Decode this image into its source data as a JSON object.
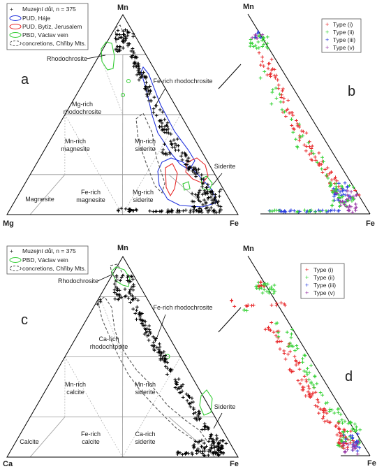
{
  "colors": {
    "type_i": "#e8292b",
    "type_ii": "#35d235",
    "type_iii": "#2b3fe0",
    "type_v": "#9a3aa8",
    "pud_haje": "#2233dd",
    "pud_bytiz": "#e82a2a",
    "pbd": "#33cc33",
    "concretions": "#555555",
    "museum": "#000000"
  },
  "chart_data": [
    {
      "panel": "a",
      "type": "scatter",
      "corners": {
        "top": "Mn",
        "left": "Mg",
        "right": "Fe"
      },
      "legend": [
        {
          "marker": "plus",
          "label": "Muzejní důl, n = 375"
        },
        {
          "marker": "outline-blue",
          "label": "PUD, Háje"
        },
        {
          "marker": "outline-red",
          "label": "PUD, Bytíz, Jerusalem"
        },
        {
          "marker": "outline-green",
          "label": "PBD, Václav vein"
        },
        {
          "marker": "outline-dashed",
          "label": "concretions, Chřiby Mts."
        }
      ],
      "fields": [
        [
          "Rhodochrosite"
        ],
        [
          "Mg-rich",
          "rhodochrosite"
        ],
        [
          "Mn-rich",
          "magnesite"
        ],
        [
          "Mn-rich",
          "siderite"
        ],
        [
          "Magnesite"
        ],
        [
          "Fe-rich",
          "magnesite"
        ],
        [
          "Mg-rich",
          "siderite"
        ],
        [
          "Fe-rich rhodochrosite"
        ],
        [
          "Siderite"
        ]
      ]
    },
    {
      "panel": "b",
      "type": "scatter",
      "corners": {
        "top": "Mn",
        "right": "Fe"
      },
      "legend": [
        "Type (i)",
        "Type (ii)",
        "Type (iii)",
        "Type (v)"
      ]
    },
    {
      "panel": "c",
      "type": "scatter",
      "corners": {
        "top": "Mn",
        "left": "Ca",
        "right": "Fe"
      },
      "legend": [
        {
          "marker": "plus",
          "label": "Muzejní důl, n = 375"
        },
        {
          "marker": "outline-green",
          "label": "PBD, Václav vein"
        },
        {
          "marker": "outline-dashed",
          "label": "concretions, Chřiby Mts."
        }
      ],
      "fields": [
        [
          "Rhodochrosite"
        ],
        [
          "Ca-rich",
          "rhodochrosite"
        ],
        [
          "Mn-rich",
          "calcite"
        ],
        [
          "Mn-rich",
          "siderite"
        ],
        [
          "Calcite"
        ],
        [
          "Fe-rich",
          "calcite"
        ],
        [
          "Ca-rich",
          "siderite"
        ],
        [
          "Fe-rich rhodochrosite"
        ],
        [
          "Siderite"
        ]
      ]
    },
    {
      "panel": "d",
      "type": "scatter",
      "corners": {
        "top": "Mn",
        "right": "Fe"
      },
      "legend": [
        "Type (i)",
        "Type (ii)",
        "Type (iii)",
        "Type (v)"
      ]
    }
  ]
}
